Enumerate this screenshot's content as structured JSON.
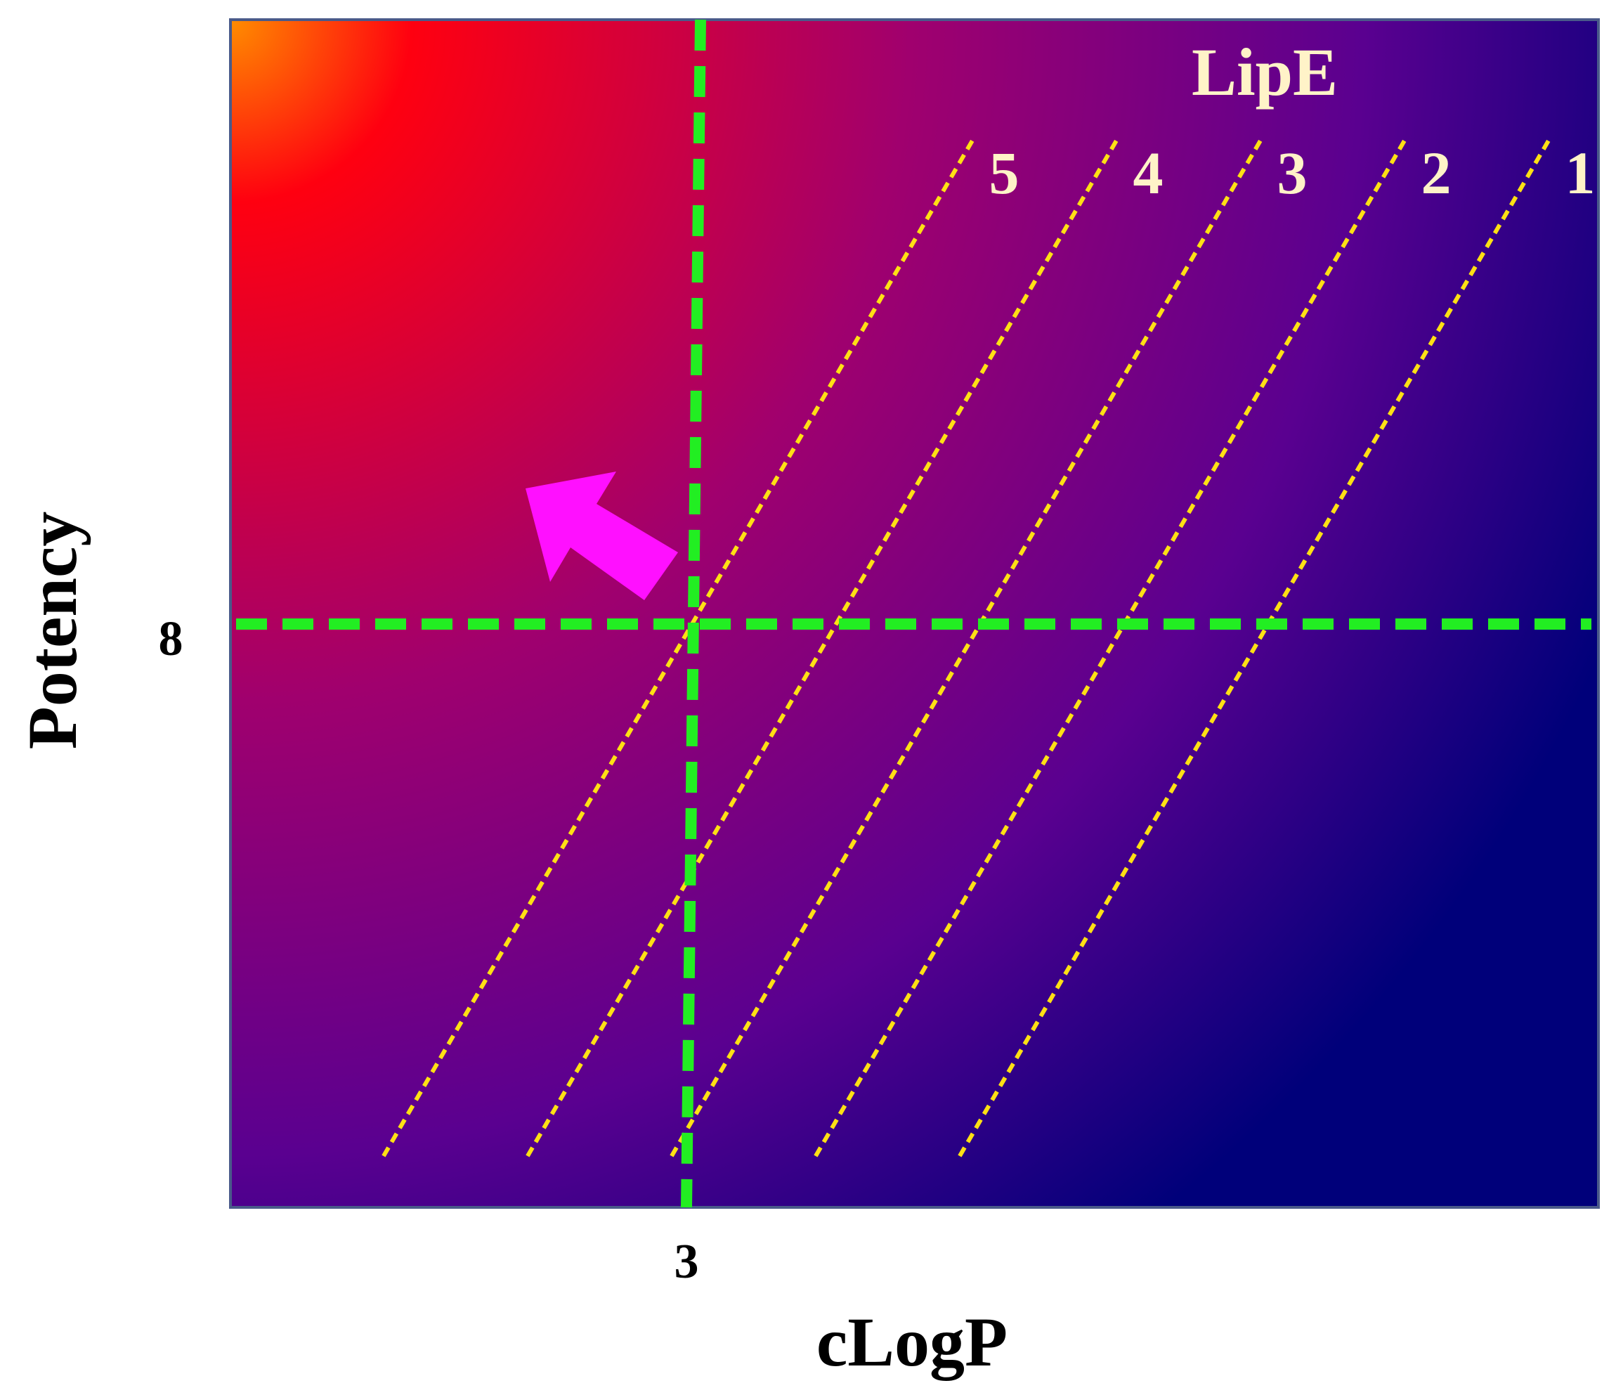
{
  "chart_data": {
    "type": "line",
    "title": "",
    "xlabel": "cLogP",
    "ylabel": "Potency",
    "legend_title": "LipE",
    "x_ticks": [
      {
        "value": 3,
        "label": "3"
      }
    ],
    "y_ticks": [
      {
        "value": 8,
        "label": "8"
      }
    ],
    "series": [
      {
        "name": "5",
        "lipe": 5
      },
      {
        "name": "4",
        "lipe": 4
      },
      {
        "name": "3",
        "lipe": 3
      },
      {
        "name": "2",
        "lipe": 2
      },
      {
        "name": "1",
        "lipe": 1
      }
    ],
    "threshold_lines": [
      {
        "axis": "x",
        "value": 3
      },
      {
        "axis": "y",
        "value": 8
      }
    ],
    "arrow_direction": "up-left",
    "grid": false,
    "colors": {
      "gradient_top_left": "#ff8c00",
      "gradient_mid": "#ff0010",
      "gradient_center": "#a0006e",
      "gradient_bottom_right": "#00007a",
      "lipe_lines": "#ffe014",
      "threshold_lines": "#22ee22",
      "arrow": "#ff10ff",
      "lipe_text": "#fff3c8",
      "frame": "#4a5a8a"
    }
  }
}
